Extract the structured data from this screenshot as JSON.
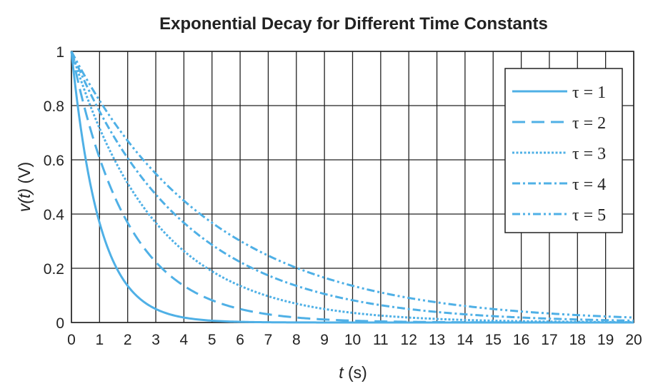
{
  "chart_data": {
    "type": "line",
    "title": "Exponential Decay for Different Time Constants",
    "xlabel_var": "t",
    "xlabel_unit": "(s)",
    "ylabel_var": "v(t)",
    "ylabel_unit": "(V)",
    "xlim": [
      0,
      20
    ],
    "ylim": [
      0,
      1
    ],
    "xticks": [
      "0",
      "1",
      "2",
      "3",
      "4",
      "5",
      "6",
      "7",
      "8",
      "9",
      "10",
      "11",
      "12",
      "13",
      "14",
      "15",
      "16",
      "17",
      "18",
      "19",
      "20"
    ],
    "yticks": [
      "0",
      "0.2",
      "0.4",
      "0.6",
      "0.8",
      "1"
    ],
    "grid": true,
    "legend_position": "top-right",
    "line_color": "#4fb0e6",
    "series": [
      {
        "name": "τ = 1",
        "tau": 1,
        "style": "solid",
        "x": [
          0,
          1,
          2,
          3,
          4,
          5,
          6,
          7,
          8,
          10,
          12,
          14,
          16,
          18,
          20
        ],
        "y": [
          1,
          0.368,
          0.135,
          0.05,
          0.018,
          0.007,
          0.002,
          0.001,
          0,
          0,
          0,
          0,
          0,
          0,
          0
        ]
      },
      {
        "name": "τ = 2",
        "tau": 2,
        "style": "dashed",
        "x": [
          0,
          1,
          2,
          3,
          4,
          5,
          6,
          7,
          8,
          10,
          12,
          14,
          16,
          18,
          20
        ],
        "y": [
          1,
          0.607,
          0.368,
          0.223,
          0.135,
          0.082,
          0.05,
          0.03,
          0.018,
          0.007,
          0.002,
          0.001,
          0,
          0,
          0
        ]
      },
      {
        "name": "τ = 3",
        "tau": 3,
        "style": "dotted",
        "x": [
          0,
          1,
          2,
          3,
          4,
          5,
          6,
          7,
          8,
          10,
          12,
          14,
          16,
          18,
          20
        ],
        "y": [
          1,
          0.717,
          0.513,
          0.368,
          0.264,
          0.189,
          0.135,
          0.097,
          0.069,
          0.036,
          0.018,
          0.009,
          0.005,
          0.002,
          0.001
        ]
      },
      {
        "name": "τ = 4",
        "tau": 4,
        "style": "dash-dot",
        "x": [
          0,
          1,
          2,
          3,
          4,
          5,
          6,
          7,
          8,
          10,
          12,
          14,
          16,
          18,
          20
        ],
        "y": [
          1,
          0.779,
          0.607,
          0.472,
          0.368,
          0.287,
          0.223,
          0.174,
          0.135,
          0.082,
          0.05,
          0.03,
          0.018,
          0.011,
          0.007
        ]
      },
      {
        "name": "τ = 5",
        "tau": 5,
        "style": "dash-dot-dot",
        "x": [
          0,
          1,
          2,
          3,
          4,
          5,
          6,
          7,
          8,
          10,
          12,
          14,
          16,
          18,
          20
        ],
        "y": [
          1,
          0.819,
          0.67,
          0.549,
          0.449,
          0.368,
          0.301,
          0.247,
          0.202,
          0.135,
          0.091,
          0.061,
          0.041,
          0.027,
          0.018
        ]
      }
    ]
  }
}
